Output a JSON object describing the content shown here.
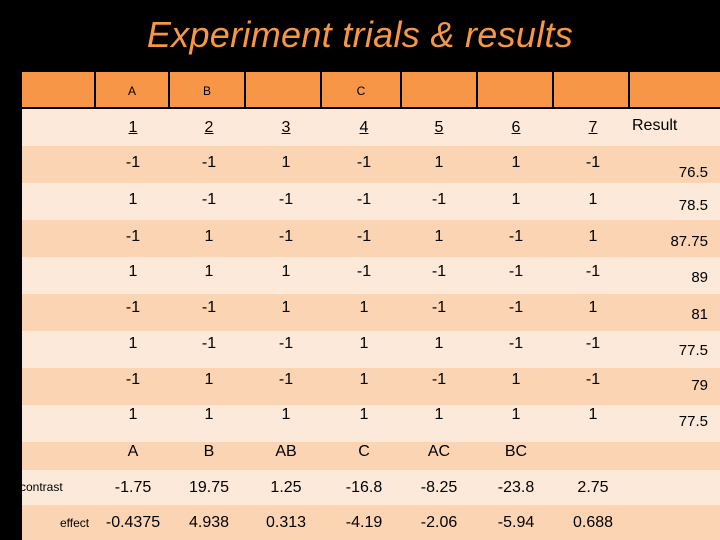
{
  "title": "Experiment trials & results",
  "colors": {
    "title": "#f79646",
    "header": "#f79646",
    "row_light": "#fde9d9",
    "row_dark": "#fbd4b4",
    "background": "#000000"
  },
  "table": {
    "factor_labels": [
      "A",
      "B",
      "",
      "C",
      "",
      "",
      ""
    ],
    "column_indices": [
      "1",
      "2",
      "3",
      "4",
      "5",
      "6",
      "7"
    ],
    "result_header": "Result",
    "rows": [
      {
        "cells": [
          "-1",
          "-1",
          "1",
          "-1",
          "1",
          "1",
          "-1"
        ],
        "result": "76.5"
      },
      {
        "cells": [
          "1",
          "-1",
          "-1",
          "-1",
          "-1",
          "1",
          "1"
        ],
        "result": "78.5"
      },
      {
        "cells": [
          "-1",
          "1",
          "-1",
          "-1",
          "1",
          "-1",
          "1"
        ],
        "result": "87.75"
      },
      {
        "cells": [
          "1",
          "1",
          "1",
          "-1",
          "-1",
          "-1",
          "-1"
        ],
        "result": "89"
      },
      {
        "cells": [
          "-1",
          "-1",
          "1",
          "1",
          "-1",
          "-1",
          "1"
        ],
        "result": "81"
      },
      {
        "cells": [
          "1",
          "-1",
          "-1",
          "1",
          "1",
          "-1",
          "-1"
        ],
        "result": "77.5"
      },
      {
        "cells": [
          "-1",
          "1",
          "-1",
          "1",
          "-1",
          "1",
          "-1"
        ],
        "result": "79"
      },
      {
        "cells": [
          "1",
          "1",
          "1",
          "1",
          "1",
          "1",
          "1"
        ],
        "result": "77.5"
      }
    ],
    "effect_names": [
      "A",
      "B",
      "AB",
      "C",
      "AC",
      "BC",
      ""
    ],
    "contrast_label": "contrast",
    "contrast": [
      "-1.75",
      "19.75",
      "1.25",
      "-16.8",
      "-8.25",
      "-23.8",
      "2.75"
    ],
    "effect_label": "effect",
    "effect": [
      "-0.4375",
      "4.938",
      "0.313",
      "-4.19",
      "-2.06",
      "-5.94",
      "0.688"
    ]
  }
}
